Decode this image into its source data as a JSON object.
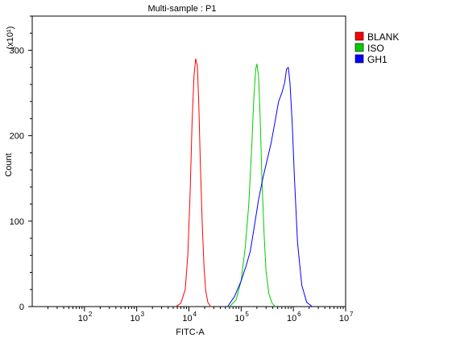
{
  "chart_data": {
    "type": "line",
    "title": "Multi-sample : P1",
    "xlabel": "FITC-A",
    "ylabel": "Count",
    "y_multiplier": "(x10¹)",
    "x_scale": "log",
    "xlim": [
      10,
      10000000
    ],
    "ylim": [
      0,
      340
    ],
    "x_ticks": [
      {
        "value": 100,
        "base": "10",
        "exp": "2"
      },
      {
        "value": 1000,
        "base": "10",
        "exp": "3"
      },
      {
        "value": 10000,
        "base": "10",
        "exp": "4"
      },
      {
        "value": 100000,
        "base": "10",
        "exp": "5"
      },
      {
        "value": 1000000,
        "base": "10",
        "exp": "6"
      },
      {
        "value": 10000000,
        "base": "10",
        "exp": "7"
      }
    ],
    "y_ticks": [
      0,
      100,
      200,
      300
    ],
    "grid": false,
    "legend_position": "top-right",
    "series": [
      {
        "name": "BLANK",
        "color": "#ff0000",
        "x": [
          5600,
          7000,
          8500,
          9500,
          10500,
          11500,
          12500,
          13500,
          14500,
          15500,
          16500,
          18000,
          19500,
          21000,
          23000,
          26000
        ],
        "y": [
          0,
          4,
          20,
          60,
          130,
          215,
          270,
          290,
          282,
          235,
          170,
          95,
          45,
          18,
          5,
          0
        ]
      },
      {
        "name": "ISO",
        "color": "#00cc00",
        "x": [
          60000,
          80000,
          100000,
          120000,
          140000,
          160000,
          175000,
          190000,
          200000,
          215000,
          230000,
          250000,
          275000,
          300000,
          340000,
          390000,
          450000
        ],
        "y": [
          0,
          8,
          30,
          70,
          120,
          190,
          245,
          278,
          284,
          270,
          225,
          150,
          85,
          40,
          15,
          4,
          0
        ]
      },
      {
        "name": "GH1",
        "color": "#0000ff",
        "x": [
          55000,
          75000,
          100000,
          125000,
          150000,
          180000,
          215000,
          260000,
          310000,
          370000,
          440000,
          520000,
          600000,
          680000,
          740000,
          800000,
          860000,
          950000,
          1050000,
          1200000,
          1450000,
          1800000,
          2300000
        ],
        "y": [
          0,
          12,
          30,
          48,
          65,
          95,
          125,
          150,
          170,
          190,
          215,
          240,
          250,
          262,
          278,
          280,
          262,
          215,
          150,
          75,
          25,
          5,
          0
        ]
      }
    ]
  }
}
